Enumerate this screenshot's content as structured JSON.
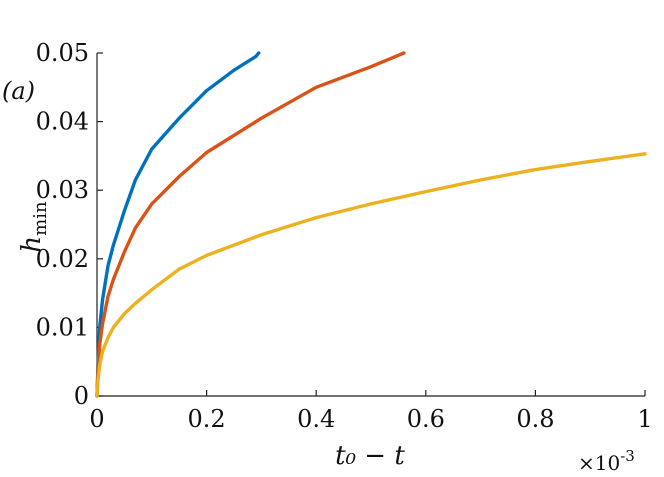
{
  "chart_data": {
    "type": "line",
    "panel_label": "(a)",
    "xlabel": "t₀ − t",
    "ylabel_main": "h",
    "ylabel_sub": "min",
    "x_exponent_label": "×10",
    "x_exponent_power": "-3",
    "xlim": [
      0,
      1
    ],
    "ylim": [
      0,
      0.05
    ],
    "x_ticks": [
      "0",
      "0.2",
      "0.4",
      "0.6",
      "0.8",
      "1"
    ],
    "y_ticks": [
      "0",
      "0.01",
      "0.02",
      "0.03",
      "0.04",
      "0.05"
    ],
    "grid": false,
    "series": [
      {
        "color": "#0072BD",
        "points": [
          [
            0,
            0
          ],
          [
            0.002,
            0.005
          ],
          [
            0.005,
            0.01
          ],
          [
            0.01,
            0.014
          ],
          [
            0.02,
            0.019
          ],
          [
            0.03,
            0.022
          ],
          [
            0.05,
            0.027
          ],
          [
            0.07,
            0.0315
          ],
          [
            0.1,
            0.036
          ],
          [
            0.15,
            0.0405
          ],
          [
            0.2,
            0.0445
          ],
          [
            0.25,
            0.0475
          ],
          [
            0.29,
            0.0495
          ],
          [
            0.295,
            0.05
          ]
        ]
      },
      {
        "color": "#D95319",
        "points": [
          [
            0,
            0
          ],
          [
            0.002,
            0.004
          ],
          [
            0.005,
            0.0075
          ],
          [
            0.01,
            0.0105
          ],
          [
            0.02,
            0.0145
          ],
          [
            0.03,
            0.017
          ],
          [
            0.05,
            0.021
          ],
          [
            0.07,
            0.0245
          ],
          [
            0.1,
            0.028
          ],
          [
            0.15,
            0.032
          ],
          [
            0.2,
            0.0355
          ],
          [
            0.3,
            0.0405
          ],
          [
            0.4,
            0.045
          ],
          [
            0.5,
            0.048
          ],
          [
            0.56,
            0.05
          ]
        ]
      },
      {
        "color": "#EDB120",
        "points": [
          [
            0,
            0
          ],
          [
            0.002,
            0.0025
          ],
          [
            0.005,
            0.0045
          ],
          [
            0.01,
            0.0065
          ],
          [
            0.02,
            0.0085
          ],
          [
            0.03,
            0.01
          ],
          [
            0.05,
            0.012
          ],
          [
            0.07,
            0.0135
          ],
          [
            0.1,
            0.0155
          ],
          [
            0.15,
            0.0185
          ],
          [
            0.2,
            0.0205
          ],
          [
            0.3,
            0.0235
          ],
          [
            0.4,
            0.026
          ],
          [
            0.5,
            0.028
          ],
          [
            0.6,
            0.0298
          ],
          [
            0.7,
            0.0315
          ],
          [
            0.8,
            0.033
          ],
          [
            0.9,
            0.0342
          ],
          [
            1.0,
            0.0353
          ]
        ]
      }
    ]
  }
}
